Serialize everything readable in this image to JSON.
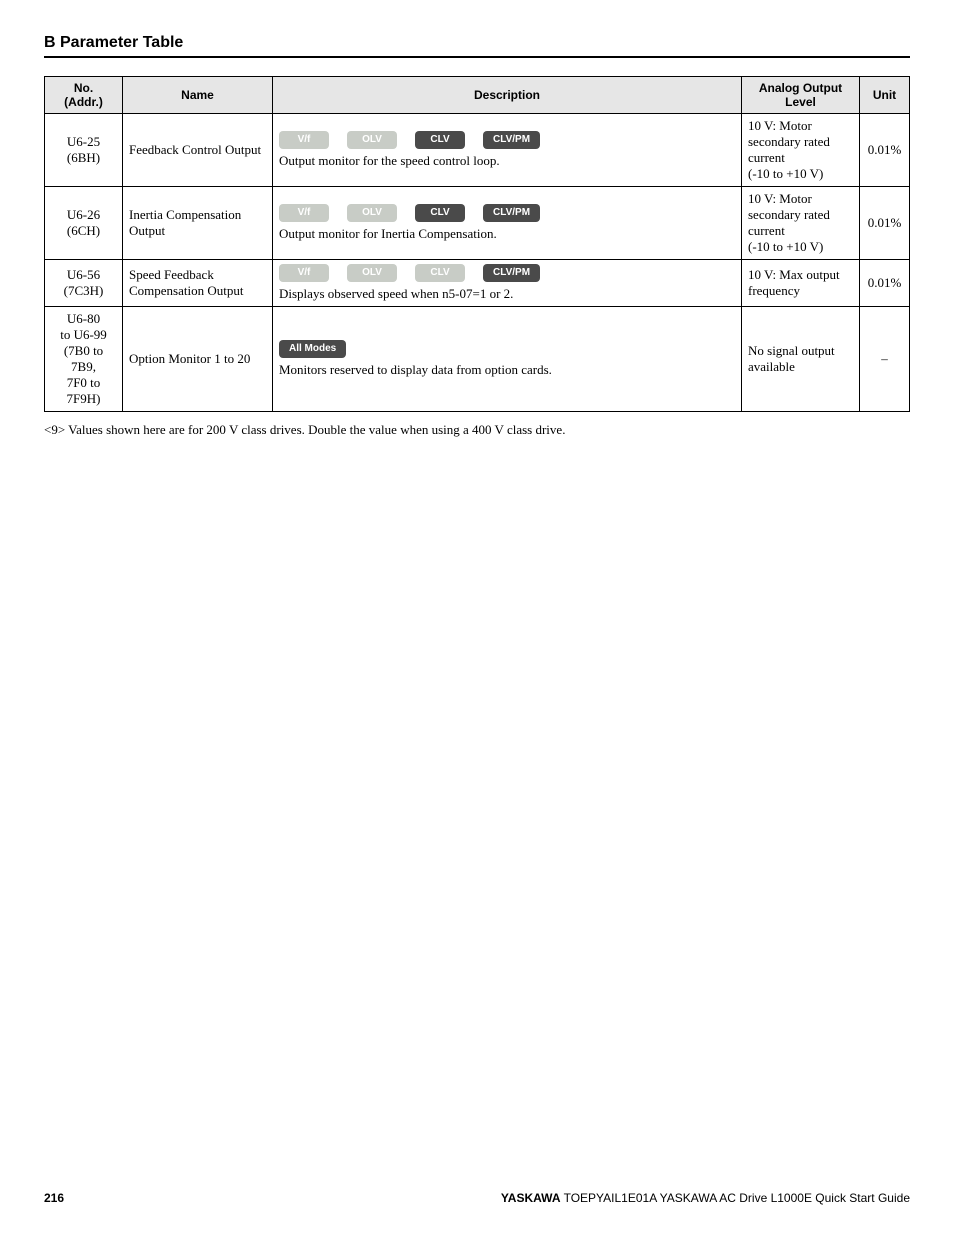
{
  "section_title": "B  Parameter Table",
  "columns": {
    "no": "No.\n(Addr.)",
    "name": "Name",
    "desc": "Description",
    "level": "Analog Output Level",
    "unit": "Unit"
  },
  "badge_labels": {
    "vf": "V/f",
    "olv": "OLV",
    "clv": "CLV",
    "clvpm": "CLV/PM",
    "all": "All Modes"
  },
  "rows": [
    {
      "no": "U6-25\n(6BH)",
      "name": "Feedback Control Output",
      "badges": [
        {
          "key": "vf",
          "state": "disabled"
        },
        {
          "key": "olv",
          "state": "disabled"
        },
        {
          "key": "clv",
          "state": "enabled"
        },
        {
          "key": "clvpm",
          "state": "enabled"
        }
      ],
      "desc_text": "Output monitor for the speed control loop.",
      "level": "10 V: Motor secondary rated current\n(-10 to +10 V)",
      "unit": "0.01%"
    },
    {
      "no": "U6-26\n(6CH)",
      "name": "Inertia Compensation Output",
      "badges": [
        {
          "key": "vf",
          "state": "disabled"
        },
        {
          "key": "olv",
          "state": "disabled"
        },
        {
          "key": "clv",
          "state": "enabled"
        },
        {
          "key": "clvpm",
          "state": "enabled"
        }
      ],
      "desc_text": "Output monitor for Inertia Compensation.",
      "level": "10 V: Motor secondary rated current\n(-10 to +10 V)",
      "unit": "0.01%"
    },
    {
      "no": "U6-56\n(7C3H)",
      "name": "Speed Feedback Compensation Output",
      "badges": [
        {
          "key": "vf",
          "state": "disabled"
        },
        {
          "key": "olv",
          "state": "disabled"
        },
        {
          "key": "clv",
          "state": "disabled"
        },
        {
          "key": "clvpm",
          "state": "enabled"
        }
      ],
      "desc_text": "Displays observed speed when n5-07=1 or 2.",
      "level": "10 V: Max output frequency",
      "unit": "0.01%"
    },
    {
      "no": "U6-80\nto U6-99\n(7B0 to\n7B9,\n7F0 to\n7F9H)",
      "name": "Option Monitor 1 to 20",
      "badges": [
        {
          "key": "all",
          "state": "enabled"
        }
      ],
      "desc_text": "Monitors reserved to display data from option cards.",
      "level": "No signal output available",
      "unit": "–"
    }
  ],
  "footnote": "<9> Values shown here are for 200 V class drives. Double the value when using a 400 V class drive.",
  "footer": {
    "page": "216",
    "brand": "YASKAWA",
    "doc": " TOEPYAIL1E01A YASKAWA AC Drive L1000E Quick Start Guide"
  }
}
